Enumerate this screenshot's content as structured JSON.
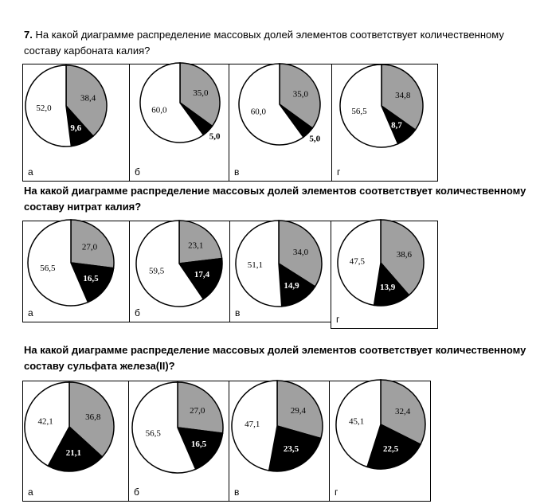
{
  "questions": [
    {
      "number": "7.",
      "text": "На какой диаграмме распределение массовых долей элементов соответствует количественному составу карбоната калия?",
      "pies": [
        {
          "letter": "а",
          "slices": [
            {
              "value": "38,4",
              "color": "#a0a0a0",
              "v": 38.4
            },
            {
              "value": "9,6",
              "color": "#000000",
              "v": 9.6
            },
            {
              "value": "52,0",
              "color": "#ffffff",
              "v": 52.0
            }
          ]
        },
        {
          "letter": "б",
          "slices": [
            {
              "value": "35,0",
              "color": "#a0a0a0",
              "v": 35.0
            },
            {
              "value": "5,0",
              "color": "#000000",
              "v": 5.0
            },
            {
              "value": "60,0",
              "color": "#ffffff",
              "v": 60.0
            }
          ]
        },
        {
          "letter": "в",
          "slices": [
            {
              "value": "35,0",
              "color": "#a0a0a0",
              "v": 35.0
            },
            {
              "value": "5,0",
              "color": "#000000",
              "v": 5.0
            },
            {
              "value": "60,0",
              "color": "#ffffff",
              "v": 60.0
            }
          ]
        },
        {
          "letter": "г",
          "slices": [
            {
              "value": "34,8",
              "color": "#a0a0a0",
              "v": 34.8
            },
            {
              "value": "8,7",
              "color": "#000000",
              "v": 8.7
            },
            {
              "value": "56,5",
              "color": "#ffffff",
              "v": 56.5
            }
          ]
        }
      ]
    },
    {
      "number": "",
      "text": "На какой диаграмме распределение массовых долей элементов соответствует количественному составу нитрат калия?",
      "pies": [
        {
          "letter": "а",
          "slices": [
            {
              "value": "27,0",
              "color": "#a0a0a0",
              "v": 27.0
            },
            {
              "value": "16,5",
              "color": "#000000",
              "v": 16.5
            },
            {
              "value": "56,5",
              "color": "#ffffff",
              "v": 56.5
            }
          ]
        },
        {
          "letter": "б",
          "slices": [
            {
              "value": "23,1",
              "color": "#a0a0a0",
              "v": 23.1
            },
            {
              "value": "17,4",
              "color": "#000000",
              "v": 17.4
            },
            {
              "value": "59,5",
              "color": "#ffffff",
              "v": 59.5
            }
          ]
        },
        {
          "letter": "в",
          "slices": [
            {
              "value": "34,0",
              "color": "#a0a0a0",
              "v": 34.0
            },
            {
              "value": "14,9",
              "color": "#000000",
              "v": 14.9
            },
            {
              "value": "51,1",
              "color": "#ffffff",
              "v": 51.1
            }
          ]
        },
        {
          "letter": "г",
          "slices": [
            {
              "value": "38,6",
              "color": "#a0a0a0",
              "v": 38.6
            },
            {
              "value": "13,9",
              "color": "#000000",
              "v": 13.9
            },
            {
              "value": "47,5",
              "color": "#ffffff",
              "v": 47.5
            }
          ]
        }
      ]
    },
    {
      "number": "",
      "text": "На какой диаграмме распределение массовых долей элементов соответствует количественному составу сульфата железа(II)?",
      "pies": [
        {
          "letter": "а",
          "slices": [
            {
              "value": "36,8",
              "color": "#a0a0a0",
              "v": 36.8
            },
            {
              "value": "21,1",
              "color": "#000000",
              "v": 21.1
            },
            {
              "value": "42,1",
              "color": "#ffffff",
              "v": 42.1
            }
          ]
        },
        {
          "letter": "б",
          "slices": [
            {
              "value": "27,0",
              "color": "#a0a0a0",
              "v": 27.0
            },
            {
              "value": "16,5",
              "color": "#000000",
              "v": 16.5
            },
            {
              "value": "56,5",
              "color": "#ffffff",
              "v": 56.5
            }
          ]
        },
        {
          "letter": "в",
          "slices": [
            {
              "value": "29,4",
              "color": "#a0a0a0",
              "v": 29.4
            },
            {
              "value": "23,5",
              "color": "#000000",
              "v": 23.5
            },
            {
              "value": "47,1",
              "color": "#ffffff",
              "v": 47.1
            }
          ]
        },
        {
          "letter": "г",
          "slices": [
            {
              "value": "32,4",
              "color": "#a0a0a0",
              "v": 32.4
            },
            {
              "value": "22,5",
              "color": "#000000",
              "v": 22.5
            },
            {
              "value": "45,1",
              "color": "#ffffff",
              "v": 45.1
            }
          ]
        }
      ]
    }
  ]
}
